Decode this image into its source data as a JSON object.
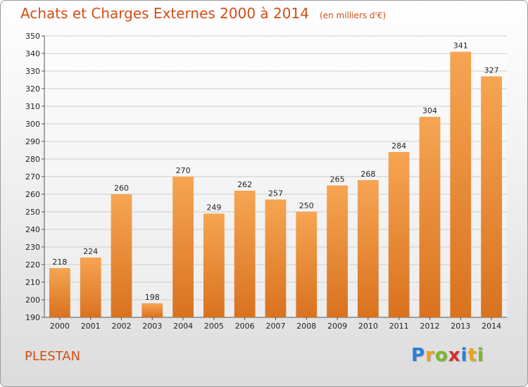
{
  "header": {
    "title": "Achats et Charges Externes 2000 à 2014",
    "unit": "(en milliers d'€)"
  },
  "footer": {
    "commune": "PLESTAN",
    "logo_letters": [
      {
        "char": "P",
        "color": "#2a7fd4"
      },
      {
        "char": "r",
        "color": "#e8a21c"
      },
      {
        "char": "o",
        "color": "#79b829"
      },
      {
        "char": "x",
        "color": "#d2302a"
      },
      {
        "char": "i",
        "color": "#2a7fd4"
      },
      {
        "char": "t",
        "color": "#e8a21c"
      },
      {
        "char": "i",
        "color": "#79b829"
      }
    ]
  },
  "colors": {
    "title": "#d24f16",
    "bar_light": "#f6a553",
    "bar_dark": "#d9721f",
    "grid": "#cccccc"
  },
  "chart_data": {
    "type": "bar",
    "title": "Achats et Charges Externes 2000 à 2014",
    "subtitle": "(en milliers d'€)",
    "xlabel": "",
    "ylabel": "",
    "categories": [
      "2000",
      "2001",
      "2002",
      "2003",
      "2004",
      "2005",
      "2006",
      "2007",
      "2008",
      "2009",
      "2010",
      "2011",
      "2012",
      "2013",
      "2014"
    ],
    "values": [
      218,
      224,
      260,
      198,
      270,
      249,
      262,
      257,
      250,
      265,
      268,
      284,
      304,
      341,
      327
    ],
    "ylim": [
      190,
      350
    ],
    "y_ticks": [
      190,
      200,
      210,
      220,
      230,
      240,
      250,
      260,
      270,
      280,
      290,
      300,
      310,
      320,
      330,
      340,
      350
    ],
    "grid": true,
    "legend": "none"
  }
}
